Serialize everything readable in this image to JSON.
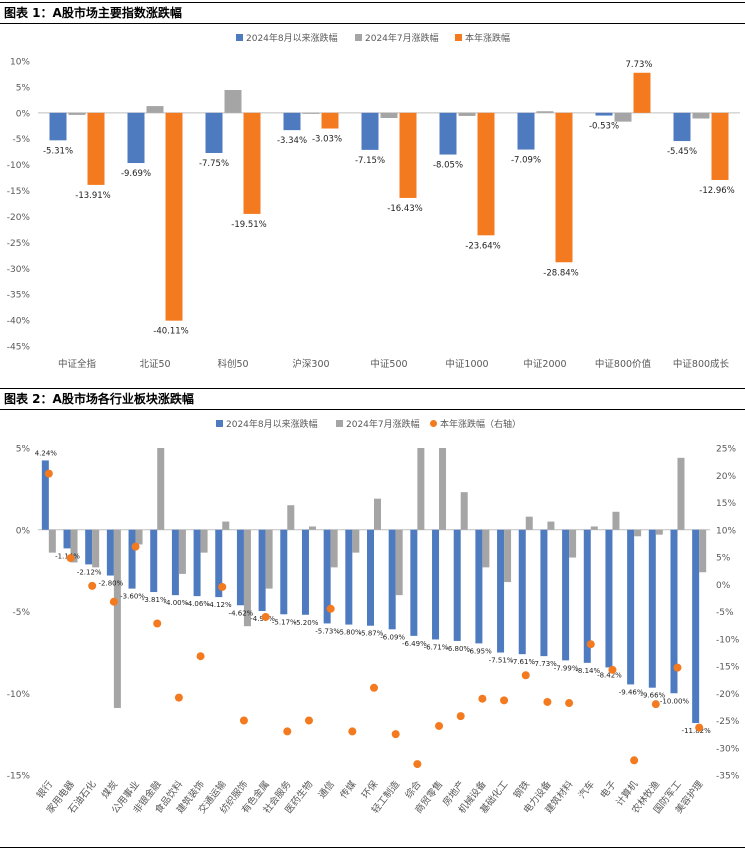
{
  "figure1": {
    "heading": "图表 1：A股市场主要指数涨跌幅"
  },
  "figure2": {
    "heading": "图表 2：A股市场各行业板块涨跌幅"
  },
  "colors": {
    "blue": "#4e7ac0",
    "gray": "#a5a5a5",
    "orange": "#f47a20",
    "axis": "#595959",
    "rule": "#000000"
  },
  "chart_data": [
    {
      "type": "bar",
      "title": "图表 1：A股市场主要指数涨跌幅",
      "categories": [
        "中证全指",
        "北证50",
        "科创50",
        "沪深300",
        "中证500",
        "中证1000",
        "中证2000",
        "中证800价值",
        "中证800成长"
      ],
      "series": [
        {
          "name": "2024年8月以来涨跌幅",
          "color": "#4e7ac0",
          "values": [
            -5.31,
            -9.69,
            -7.75,
            -3.34,
            -7.15,
            -8.05,
            -7.09,
            -0.53,
            -5.45
          ],
          "labels": [
            "-5.31%",
            "-9.69%",
            "-7.75%",
            "-3.34%",
            "-7.15%",
            "-8.05%",
            "-7.09%",
            "-0.53%",
            "-5.45%"
          ]
        },
        {
          "name": "2024年7月涨跌幅",
          "color": "#a5a5a5",
          "values": [
            -0.4,
            1.3,
            4.4,
            -0.2,
            -1.0,
            -0.6,
            0.3,
            -1.7,
            -1.1
          ]
        },
        {
          "name": "本年涨跌幅",
          "color": "#f47a20",
          "values": [
            -13.91,
            -40.11,
            -19.51,
            -3.03,
            -16.43,
            -23.64,
            -28.84,
            7.73,
            -12.96
          ],
          "labels": [
            "-13.91%",
            "-40.11%",
            "-19.51%",
            "-3.03%",
            "-16.43%",
            "-23.64%",
            "-28.84%",
            "7.73%",
            "-12.96%"
          ]
        }
      ],
      "ylim": [
        -45,
        10
      ],
      "yticks": [
        10,
        5,
        0,
        -5,
        -10,
        -15,
        -20,
        -25,
        -30,
        -35,
        -40,
        -45
      ],
      "ytick_labels": [
        "10%",
        "5%",
        "0%",
        "-5%",
        "-10%",
        "-15%",
        "-20%",
        "-25%",
        "-30%",
        "-35%",
        "-40%",
        "-45%"
      ],
      "legend": "top"
    },
    {
      "type": "bar",
      "title": "图表 2：A股市场各行业板块涨跌幅",
      "categories": [
        "银行",
        "家用电器",
        "石油石化",
        "煤炭",
        "公用事业",
        "非银金融",
        "食品饮料",
        "建筑装饰",
        "交通运输",
        "纺织服饰",
        "有色金属",
        "社会服务",
        "医药生物",
        "通信",
        "传媒",
        "环保",
        "轻工制造",
        "综合",
        "商贸零售",
        "房地产",
        "机械设备",
        "基础化工",
        "钢铁",
        "电力设备",
        "建筑材料",
        "汽车",
        "电子",
        "计算机",
        "农林牧渔",
        "国防军工",
        "美容护理"
      ],
      "series": [
        {
          "name": "2024年8月以来涨跌幅",
          "color": "#4e7ac0",
          "axis": "left",
          "values": [
            4.24,
            -1.14,
            -2.12,
            -2.8,
            -3.6,
            -3.81,
            -4.0,
            -4.06,
            -4.12,
            -4.62,
            -4.97,
            -5.17,
            -5.2,
            -5.73,
            -5.8,
            -5.87,
            -6.09,
            -6.49,
            -6.71,
            -6.8,
            -6.95,
            -7.51,
            -7.61,
            -7.73,
            -7.99,
            -8.14,
            -8.42,
            -9.46,
            -9.66,
            -10.0,
            -11.82
          ],
          "labels": [
            "4.24%",
            "-1.14%",
            "-2.12%",
            "-2.80%",
            "-3.60%",
            "-3.81%",
            "-4.00%",
            "-4.06%",
            "-4.12%",
            "-4.62%",
            "-4.97%",
            "-5.17%",
            "-5.20%",
            "-5.73%",
            "-5.80%",
            "-5.87%",
            "-6.09%",
            "-6.49%",
            "-6.71%",
            "-6.80%",
            "-6.95%",
            "-7.51%",
            "-7.61%",
            "-7.73%",
            "-7.99%",
            "-8.14%",
            "-8.42%",
            "-9.46%",
            "-9.66%",
            "-10.00%",
            "-11.82%"
          ]
        },
        {
          "name": "2024年7月涨跌幅",
          "color": "#a5a5a5",
          "axis": "left",
          "values": [
            -1.4,
            -2.0,
            -2.3,
            -10.9,
            -0.9,
            5.0,
            -2.7,
            -1.4,
            0.5,
            -5.9,
            -3.6,
            1.5,
            0.2,
            -2.3,
            -1.4,
            1.9,
            -4.0,
            5.0,
            5.0,
            2.3,
            -2.3,
            -3.2,
            0.8,
            0.5,
            -1.7,
            0.2,
            1.1,
            -0.4,
            -0.3,
            4.4,
            -2.6
          ]
        },
        {
          "name": "本年涨跌幅（右轴）",
          "color": "#f47a20",
          "axis": "right",
          "values": [
            20.3,
            4.8,
            -0.3,
            -3.2,
            6.9,
            -7.2,
            -20.8,
            -13.2,
            -0.5,
            -25.0,
            -6.0,
            -27.0,
            -25.0,
            -4.5,
            -27.0,
            -19.0,
            -27.5,
            -33.0,
            -26.0,
            -24.2,
            -21.0,
            -21.3,
            -16.7,
            -21.6,
            -21.8,
            -11.0,
            -15.7,
            -32.3,
            -22.0,
            -15.3,
            -26.3
          ]
        }
      ],
      "ylim_left": [
        -15,
        5
      ],
      "yticks_left": [
        5,
        0,
        -5,
        -10,
        -15
      ],
      "ytick_labels_left": [
        "5%",
        "0%",
        "-5%",
        "-10%",
        "-15%"
      ],
      "ylim_right": [
        -35,
        25
      ],
      "yticks_right": [
        25,
        20,
        15,
        10,
        5,
        0,
        -5,
        -10,
        -15,
        -20,
        -25,
        -30,
        -35
      ],
      "ytick_labels_right": [
        "25%",
        "20%",
        "15%",
        "10%",
        "5%",
        "0%",
        "-5%",
        "-10%",
        "-15%",
        "-20%",
        "-25%",
        "-30%",
        "-35%"
      ],
      "legend": "top-right"
    }
  ]
}
